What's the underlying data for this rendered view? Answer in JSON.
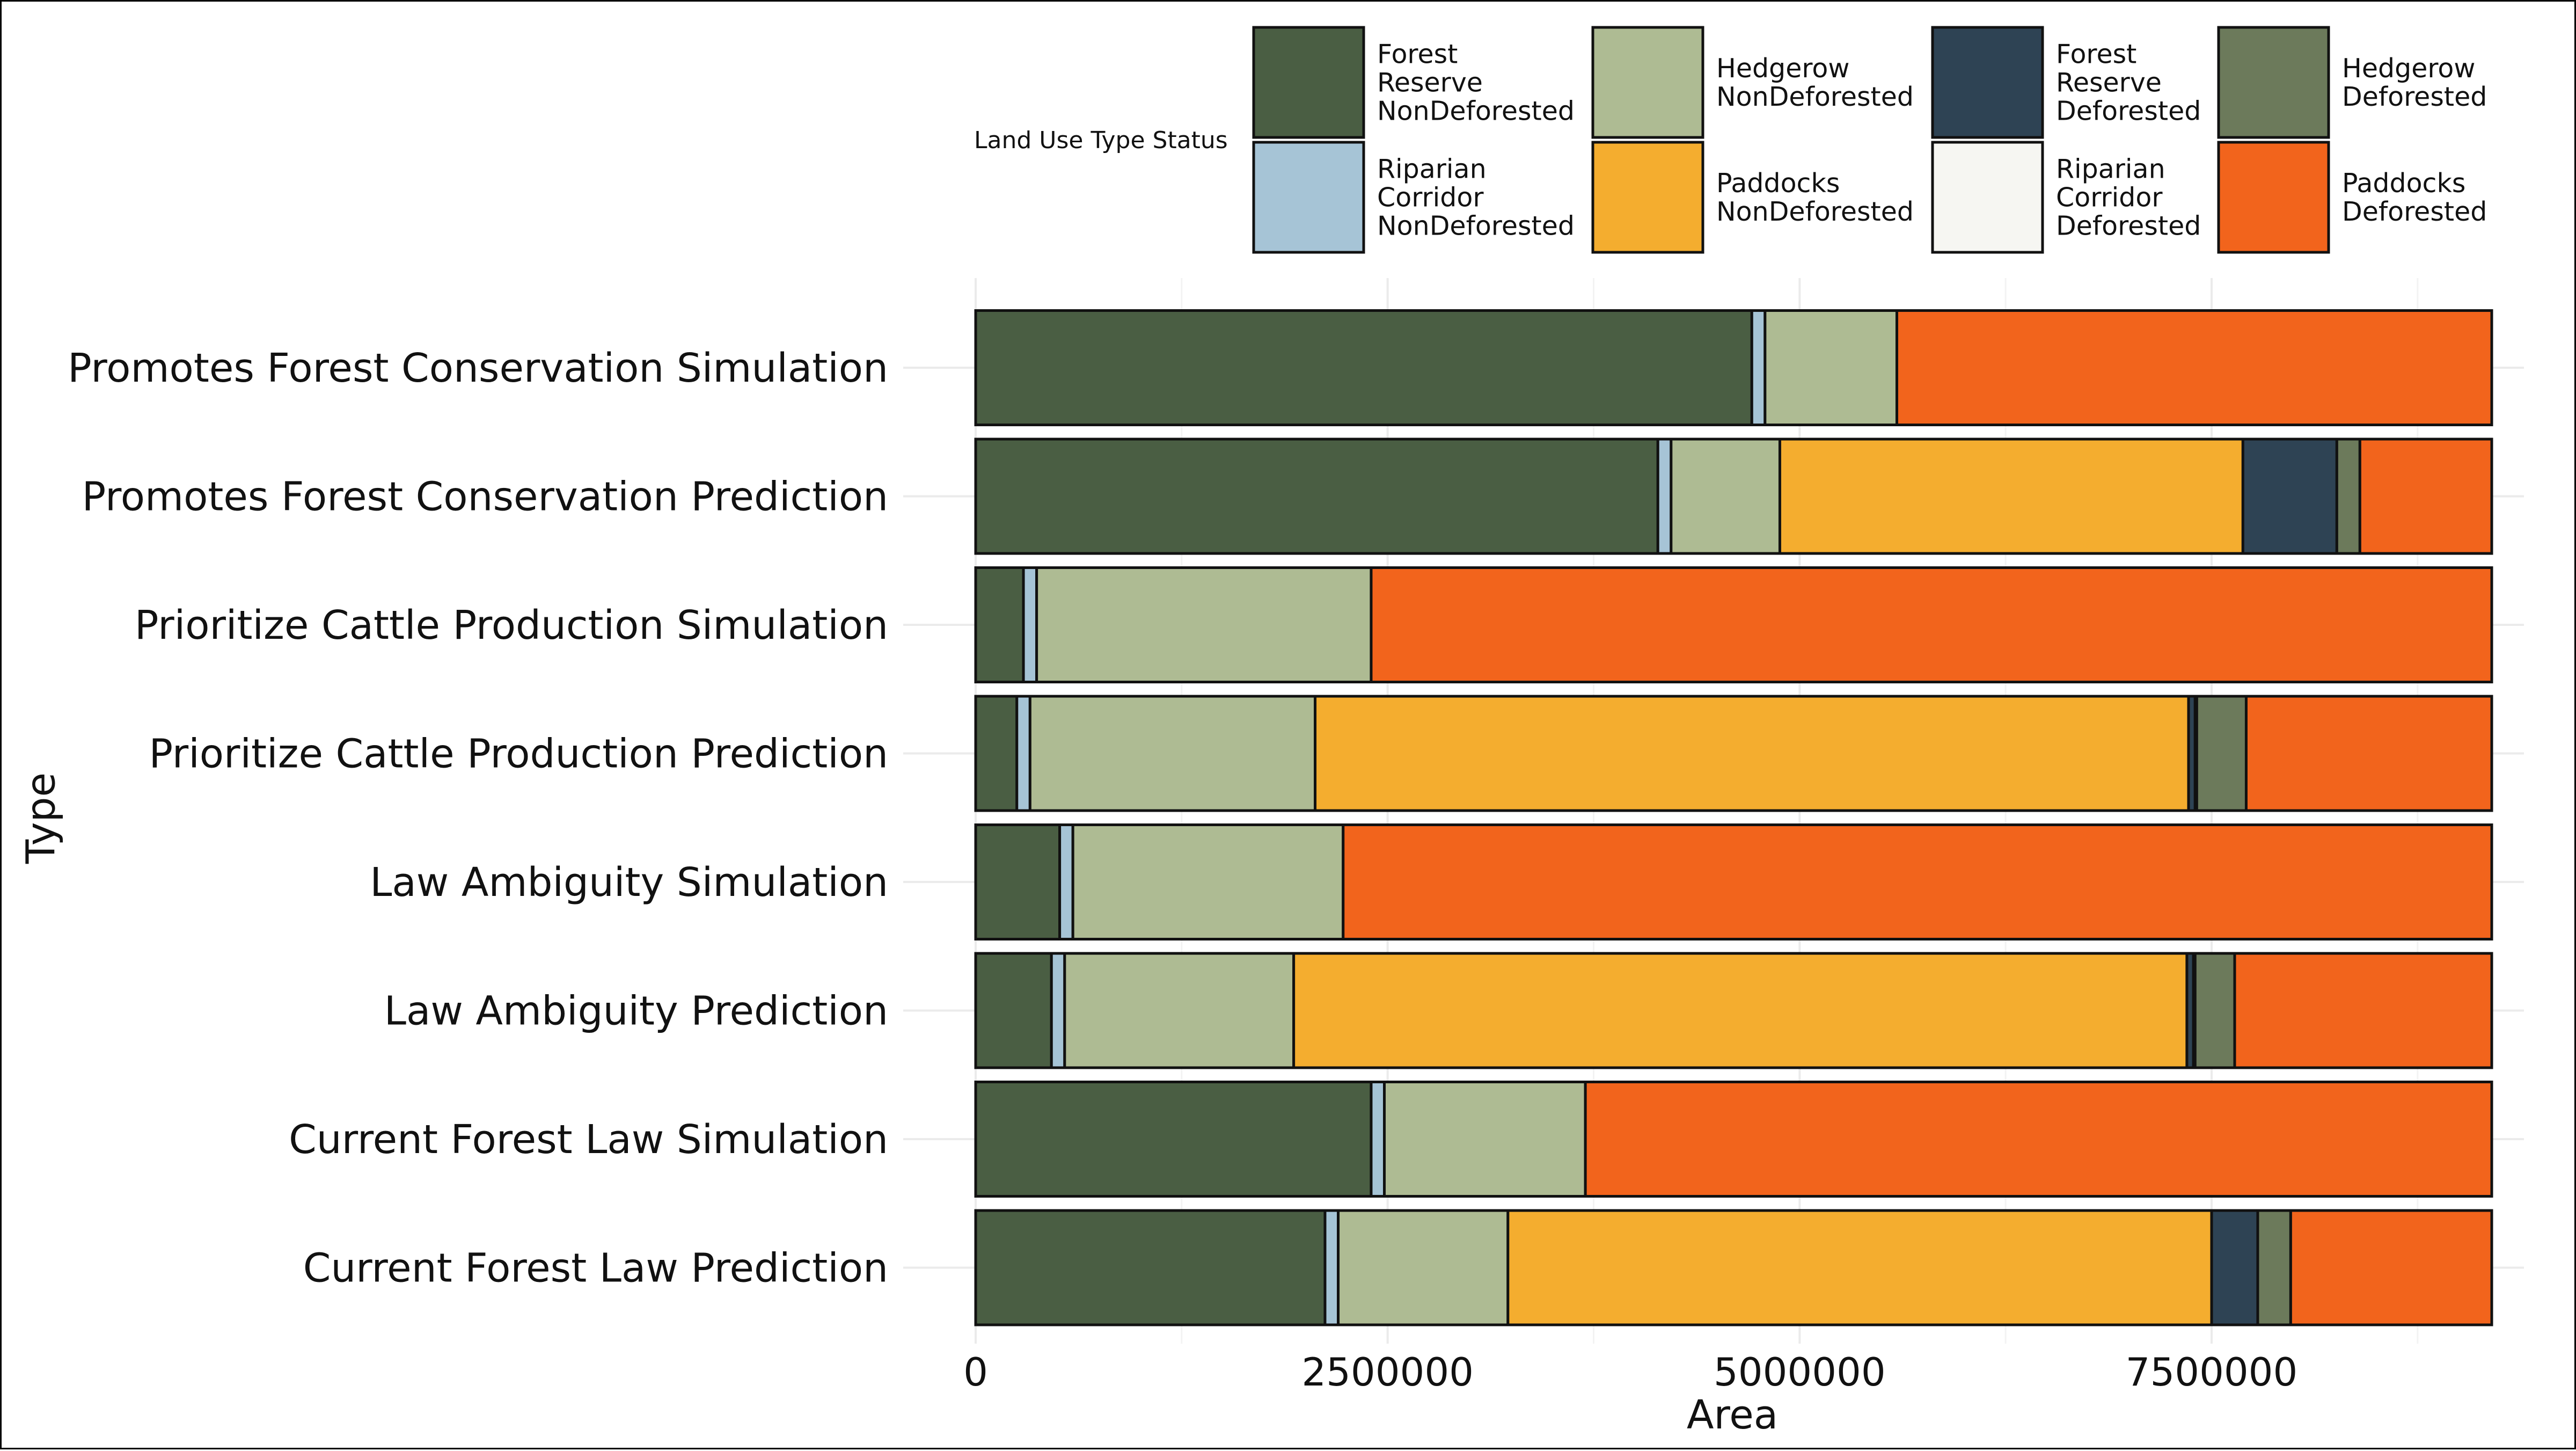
{
  "chart_data": {
    "type": "bar",
    "orientation": "horizontal",
    "stacked": true,
    "xlabel": "Area",
    "ylabel": "Type",
    "xlim": [
      0,
      9200000
    ],
    "x_ticks": [
      0,
      2500000,
      5000000,
      7500000
    ],
    "x_tick_labels": [
      "0",
      "2500000",
      "5000000",
      "7500000"
    ],
    "grid": true,
    "legend": {
      "title": "Land Use Type Status",
      "placement": "top",
      "columns": 4,
      "entries": [
        {
          "key": "frn",
          "label_lines": [
            "Forest",
            "Reserve",
            "NonDeforested"
          ],
          "color": "#4a5e43"
        },
        {
          "key": "hn",
          "label_lines": [
            "Hedgerow",
            "NonDeforested"
          ],
          "color": "#aebb93"
        },
        {
          "key": "frd",
          "label_lines": [
            "Forest",
            "Reserve",
            "Deforested"
          ],
          "color": "#2e4354"
        },
        {
          "key": "hd",
          "label_lines": [
            "Hedgerow",
            "Deforested"
          ],
          "color": "#6c7a5b"
        },
        {
          "key": "rcn",
          "label_lines": [
            "Riparian",
            "Corridor",
            "NonDeforested"
          ],
          "color": "#a6c4d6"
        },
        {
          "key": "pn",
          "label_lines": [
            "Paddocks",
            "NonDeforested"
          ],
          "color": "#f4ad2f"
        },
        {
          "key": "rcd",
          "label_lines": [
            "Riparian",
            "Corridor",
            "Deforested"
          ],
          "color": "#f6f6f2"
        },
        {
          "key": "pd",
          "label_lines": [
            "Paddocks",
            "Deforested"
          ],
          "color": "#f2641c"
        }
      ]
    },
    "stack_order": [
      "frn",
      "rcn",
      "hn",
      "pn",
      "frd",
      "rcd",
      "hd",
      "pd"
    ],
    "categories": [
      "Promotes Forest Conservation Simulation",
      "Promotes Forest Conservation Prediction",
      "Prioritize Cattle Production Simulation",
      "Prioritize Cattle Production Prediction",
      "Law Ambiguity Simulation",
      "Law Ambiguity Prediction",
      "Current Forest Law Simulation",
      "Current Forest Law Prediction"
    ],
    "series": [
      {
        "key": "frn",
        "values": [
          4710000,
          4140000,
          290000,
          250000,
          510000,
          460000,
          2400000,
          2120000
        ]
      },
      {
        "key": "rcn",
        "values": [
          80000,
          80000,
          80000,
          80000,
          80000,
          80000,
          80000,
          80000
        ]
      },
      {
        "key": "hn",
        "values": [
          800000,
          660000,
          2030000,
          1730000,
          1640000,
          1390000,
          1220000,
          1030000
        ]
      },
      {
        "key": "pn",
        "values": [
          0,
          2810000,
          0,
          5300000,
          0,
          5420000,
          0,
          4270000
        ]
      },
      {
        "key": "frd",
        "values": [
          0,
          570000,
          0,
          40000,
          0,
          40000,
          0,
          280000
        ]
      },
      {
        "key": "rcd",
        "values": [
          0,
          0,
          0,
          10000,
          0,
          10000,
          0,
          0
        ]
      },
      {
        "key": "hd",
        "values": [
          0,
          140000,
          0,
          300000,
          0,
          240000,
          0,
          200000
        ]
      },
      {
        "key": "pd",
        "values": [
          3610000,
          800000,
          6800000,
          1490000,
          6970000,
          1560000,
          5500000,
          1220000
        ]
      }
    ]
  }
}
